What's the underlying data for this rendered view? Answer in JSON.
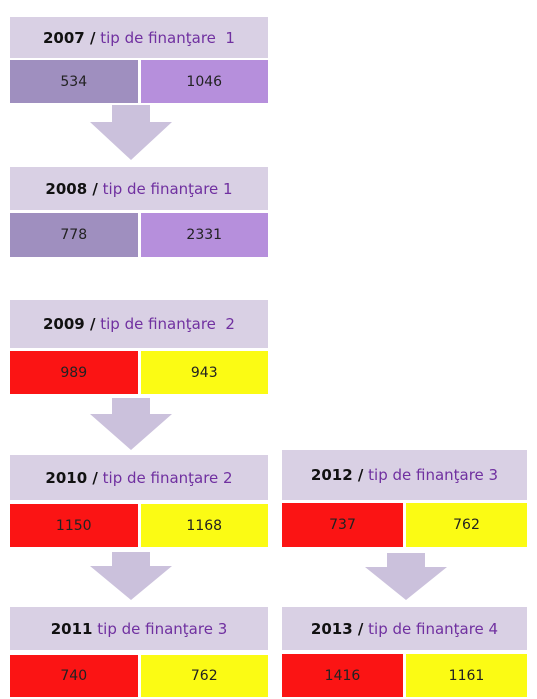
{
  "blocks": [
    {
      "year": "2007",
      "sep": "/",
      "label": "tip de finanţare  1",
      "values": [
        "534",
        "1046"
      ],
      "colors": [
        "#9f8fbf",
        "#b68fdc"
      ]
    },
    {
      "year": "2008",
      "sep": "/",
      "label": "tip de finanţare 1",
      "values": [
        "778",
        "2331"
      ],
      "colors": [
        "#9f8fbf",
        "#b68fdc"
      ]
    },
    {
      "year": "2009",
      "sep": "/",
      "label": "tip de finanţare  2",
      "values": [
        "989",
        "943"
      ],
      "colors": [
        "#fb1414",
        "#fbfb14"
      ]
    },
    {
      "year": "2010",
      "sep": "/",
      "label": "tip de finanţare 2",
      "values": [
        "1150",
        "1168"
      ],
      "colors": [
        "#fb1414",
        "#fbfb14"
      ]
    },
    {
      "year": "2011",
      "label": "tip de finanţare 3",
      "values": [
        "740",
        "762"
      ],
      "colors": [
        "#fb1414",
        "#fbfb14"
      ]
    },
    {
      "year": "2012",
      "sep": "/",
      "label": "tip de finanţare 3",
      "values": [
        "737",
        "762"
      ],
      "colors": [
        "#fb1414",
        "#fbfb14"
      ]
    },
    {
      "year": "2013",
      "sep": "/",
      "label": "tip de finanţare 4",
      "values": [
        "1416",
        "1161"
      ],
      "colors": [
        "#fb1414",
        "#fbfb14"
      ]
    }
  ]
}
